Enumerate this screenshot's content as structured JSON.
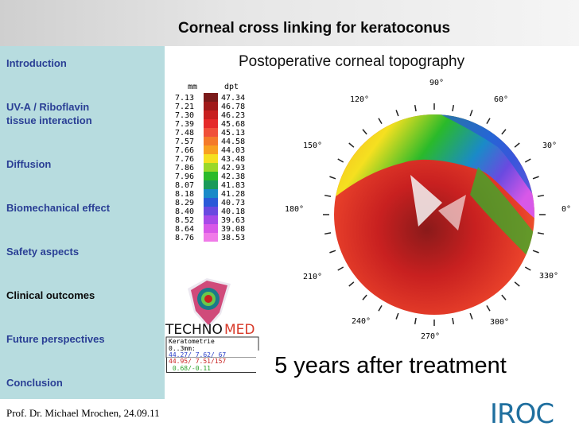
{
  "slide": {
    "title": "Corneal cross linking for keratoconus",
    "subtitle": "Postoperative corneal topography",
    "caption": "5 years after treatment",
    "author": "Prof. Dr. Michael Mrochen, 24.09.11"
  },
  "sidebar": {
    "items": [
      {
        "label": "Introduction",
        "active": false
      },
      {
        "label": "UV-A / Riboflavin tissue interaction",
        "active": false
      },
      {
        "label": "Diffusion",
        "active": false
      },
      {
        "label": "Biomechanical effect",
        "active": false
      },
      {
        "label": "Safety aspects",
        "active": false
      },
      {
        "label": "Clinical outcomes",
        "active": true
      },
      {
        "label": "Future perspectives",
        "active": false
      },
      {
        "label": "Conclusion",
        "active": false
      }
    ]
  },
  "topography": {
    "scale_headers": {
      "mm": "mm",
      "dpt": "dpt"
    },
    "scale": [
      {
        "mm": "7.13",
        "dpt": "47.34",
        "color": "#7a1a1a"
      },
      {
        "mm": "7.21",
        "dpt": "46.78",
        "color": "#a11a1a"
      },
      {
        "mm": "7.30",
        "dpt": "46.23",
        "color": "#c82020"
      },
      {
        "mm": "7.39",
        "dpt": "45.68",
        "color": "#e52a2a"
      },
      {
        "mm": "7.48",
        "dpt": "45.13",
        "color": "#f0503a"
      },
      {
        "mm": "7.57",
        "dpt": "44.58",
        "color": "#f47a2a"
      },
      {
        "mm": "7.66",
        "dpt": "44.03",
        "color": "#f8a020"
      },
      {
        "mm": "7.76",
        "dpt": "43.48",
        "color": "#f5e020"
      },
      {
        "mm": "7.86",
        "dpt": "42.93",
        "color": "#9ad82a"
      },
      {
        "mm": "7.96",
        "dpt": "42.38",
        "color": "#2aba2a"
      },
      {
        "mm": "8.07",
        "dpt": "41.83",
        "color": "#1a9a5a"
      },
      {
        "mm": "8.18",
        "dpt": "41.28",
        "color": "#1a8ac8"
      },
      {
        "mm": "8.29",
        "dpt": "40.73",
        "color": "#2a5ad8"
      },
      {
        "mm": "8.40",
        "dpt": "40.18",
        "color": "#6a4ae0"
      },
      {
        "mm": "8.52",
        "dpt": "39.63",
        "color": "#a84ae8"
      },
      {
        "mm": "8.64",
        "dpt": "39.08",
        "color": "#d858e8"
      },
      {
        "mm": "8.76",
        "dpt": "38.53",
        "color": "#f07ae8"
      }
    ],
    "angles": [
      "90°",
      "60°",
      "30°",
      "0°",
      "330°",
      "300°",
      "270°",
      "240°",
      "210°",
      "180°",
      "150°",
      "120°"
    ],
    "brand": {
      "part1": "TECHNO",
      "part2": "MED"
    },
    "keratometry": {
      "title": "Keratometrie",
      "zone": "0..3mm:",
      "lines": [
        "44.27/ 7.62/ 67",
        "44.95/ 7.51/157",
        " 0.68/-0.11"
      ]
    }
  },
  "logo": {
    "text": "IROC"
  }
}
